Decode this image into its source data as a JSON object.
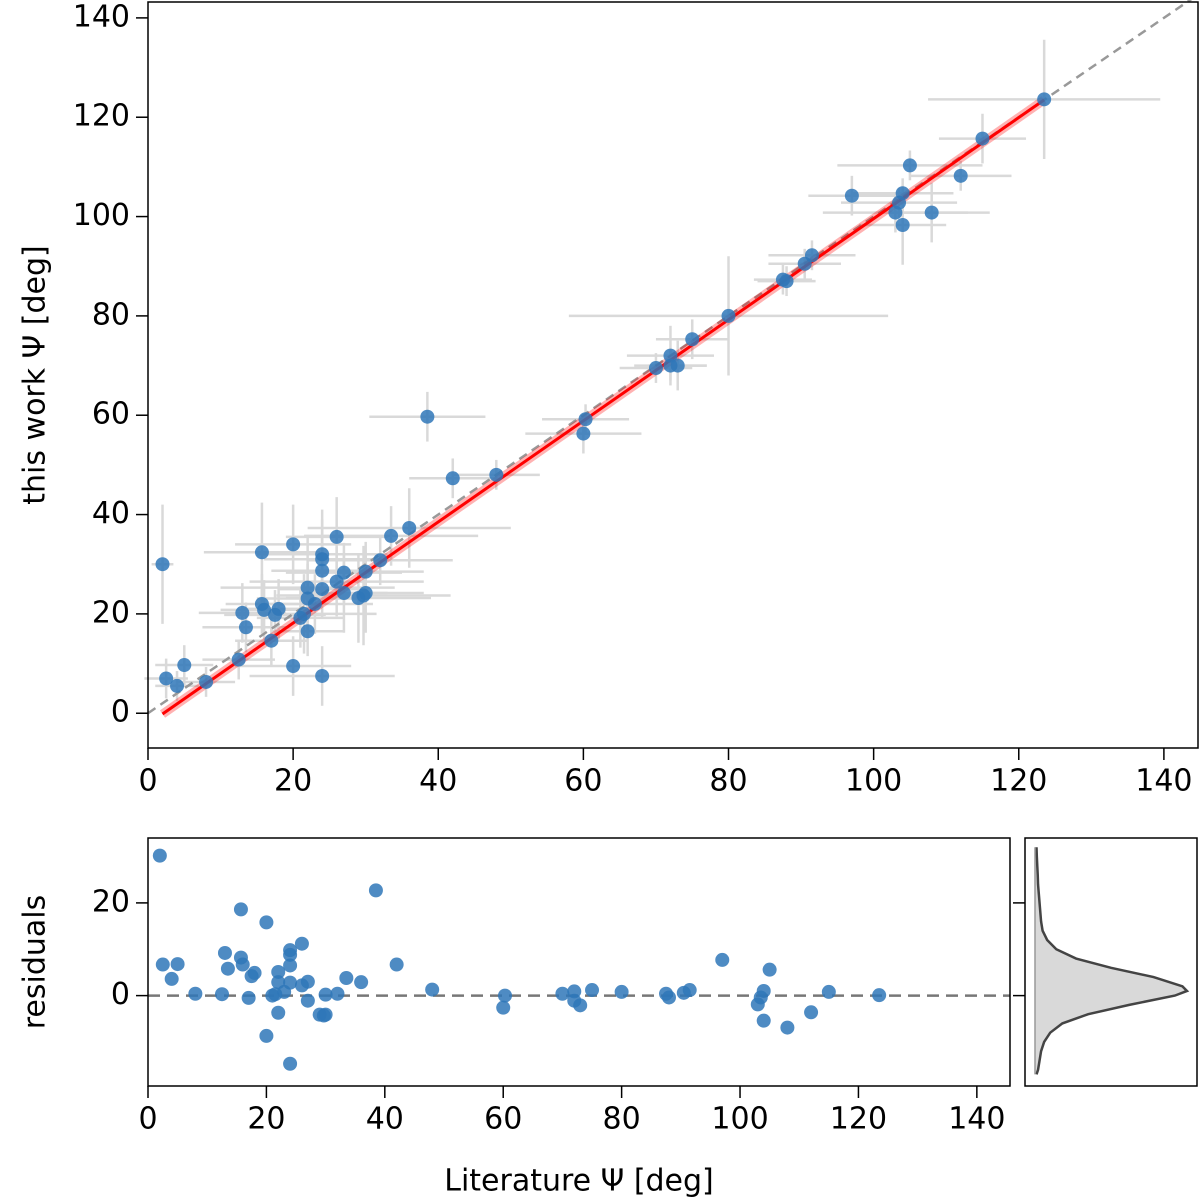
{
  "chart_data": [
    {
      "type": "scatter",
      "ylabel": "this work Ψ [deg]",
      "x": [
        2,
        2.5,
        4,
        5,
        8,
        12.5,
        13,
        13.5,
        15.7,
        15.7,
        16,
        17,
        17.5,
        18,
        20,
        20,
        21,
        21.5,
        22,
        22,
        22,
        23,
        24,
        24,
        24,
        24,
        24,
        26,
        26,
        27,
        27,
        29,
        29.7,
        30,
        30,
        32,
        33.5,
        36,
        38.5,
        42,
        48,
        60,
        60.3,
        70,
        72,
        72,
        73,
        75,
        80,
        87.5,
        88,
        90.5,
        91.5,
        97,
        103,
        103.5,
        104,
        104,
        105,
        108,
        112,
        115,
        123.5
      ],
      "values": [
        30,
        7,
        5.5,
        9.7,
        6.3,
        10.8,
        20.2,
        17.3,
        32.4,
        22,
        20.8,
        14.6,
        19.8,
        21,
        34,
        9.5,
        19.2,
        20,
        25.3,
        23.1,
        16.5,
        22,
        32,
        31,
        28.7,
        25,
        7.5,
        35.5,
        26.5,
        28.3,
        24.2,
        23.2,
        23.7,
        28.5,
        24.2,
        30.8,
        35.7,
        37.3,
        59.7,
        47.3,
        48,
        56.3,
        59.2,
        69.5,
        72,
        70,
        70,
        75.3,
        80,
        87.3,
        87,
        90.5,
        92.2,
        104.2,
        100.8,
        102.8,
        104.7,
        98.3,
        110.3,
        100.8,
        108.2,
        115.7,
        123.6
      ],
      "xerr": [
        1.5,
        3,
        3,
        4,
        4,
        5,
        6,
        6,
        8,
        5,
        6,
        5,
        7,
        5,
        8,
        8,
        6,
        10,
        12,
        7,
        5,
        8,
        9,
        8,
        7,
        6,
        10,
        7,
        12,
        8,
        6,
        10,
        12,
        8,
        8,
        10,
        12,
        14,
        8,
        6,
        6,
        8,
        6,
        5,
        6,
        5,
        4,
        5,
        22,
        4,
        4,
        5,
        6,
        6,
        10,
        8,
        7,
        6,
        10,
        8,
        7,
        6,
        16
      ],
      "yerr": [
        12,
        4,
        3,
        4,
        3,
        4,
        6,
        5,
        10,
        6,
        6,
        5,
        5,
        6,
        8,
        6,
        6,
        8,
        10,
        7,
        5,
        6,
        9,
        8,
        7,
        6,
        6,
        8,
        7,
        6,
        8,
        9,
        10,
        6,
        8,
        5,
        6,
        8,
        5,
        4,
        3,
        4,
        3,
        3,
        6,
        3,
        5,
        4,
        12,
        3,
        3,
        3,
        3,
        4,
        4,
        3,
        3,
        8,
        3,
        6,
        3,
        5,
        12
      ],
      "color": "#2f77b8",
      "errorbar_color": "#d9d9d9",
      "fit": {
        "x": [
          2,
          123.5
        ],
        "values": [
          -0.16,
          123.5
        ],
        "color": "#ff0000"
      },
      "reference": {
        "x": [
          0,
          144.7
        ],
        "values": [
          0,
          144.7
        ],
        "color": "#999999"
      },
      "xlim": [
        0,
        144.7
      ],
      "ylim": [
        -7,
        143.2
      ],
      "xticks": [
        0,
        20,
        40,
        60,
        80,
        100,
        120,
        140
      ],
      "yticks": [
        0,
        20,
        40,
        60,
        80,
        100,
        120,
        140
      ]
    },
    {
      "type": "scatter",
      "ylabel": "residuals",
      "xlabel": "Literature Ψ [deg]",
      "x": [
        2,
        2.5,
        4,
        5,
        8,
        12.5,
        13,
        13.5,
        15.7,
        15.7,
        16,
        17,
        17.5,
        18,
        20,
        20,
        21,
        21.5,
        22,
        22,
        22,
        23,
        24,
        24,
        24,
        24,
        24,
        26,
        26,
        27,
        27,
        29,
        29.7,
        30,
        30,
        32,
        33.5,
        36,
        38.5,
        42,
        48,
        60,
        60.3,
        70,
        72,
        72,
        73,
        75,
        80,
        87.5,
        88,
        90.5,
        91.5,
        97,
        103,
        103.5,
        104,
        104,
        105,
        108,
        112,
        115,
        123.5
      ],
      "values": [
        30.2,
        6.7,
        3.6,
        6.8,
        0.4,
        0.3,
        9.2,
        5.8,
        18.6,
        8.2,
        6.7,
        -0.5,
        4.2,
        4.9,
        15.8,
        -8.7,
        0,
        0.3,
        5.1,
        2.9,
        -3.7,
        0.8,
        9.8,
        8.8,
        6.5,
        2.8,
        -14.7,
        11.2,
        2.2,
        3,
        -1.1,
        -4.1,
        -4.3,
        0.2,
        -4.1,
        0.4,
        3.8,
        2.9,
        22.7,
        6.7,
        1.3,
        -2.6,
        0,
        0.4,
        0.9,
        -1.1,
        -2.1,
        1.2,
        0.8,
        0.4,
        -0.4,
        0.6,
        1.2,
        7.7,
        -1.9,
        -0.4,
        1,
        -5.4,
        5.6,
        -6.9,
        -3.6,
        0.8,
        0.1
      ],
      "color": "#2f77b8",
      "hline": {
        "value": 0,
        "color": "#777777"
      },
      "xlim": [
        0,
        145.6
      ],
      "ylim": [
        -19.5,
        34
      ],
      "xticks": [
        0,
        20,
        40,
        60,
        80,
        100,
        120,
        140
      ],
      "yticks": [
        0,
        20
      ]
    },
    {
      "type": "kde",
      "y": [
        -17,
        -16,
        -14,
        -12,
        -10,
        -8,
        -6,
        -4,
        -2,
        0,
        1,
        2,
        4,
        6,
        8,
        10,
        12,
        14,
        16,
        18,
        20,
        22,
        24,
        26,
        28,
        30,
        32
      ],
      "values": [
        0.01,
        0.02,
        0.03,
        0.04,
        0.06,
        0.1,
        0.18,
        0.35,
        0.62,
        0.92,
        1,
        0.97,
        0.78,
        0.5,
        0.27,
        0.14,
        0.08,
        0.05,
        0.04,
        0.035,
        0.03,
        0.025,
        0.02,
        0.018,
        0.015,
        0.012,
        0.01
      ],
      "color": "#d9d9d9",
      "line_color": "#444444",
      "ylim": [
        -19.5,
        34
      ],
      "yticks": [
        0,
        20
      ]
    }
  ]
}
